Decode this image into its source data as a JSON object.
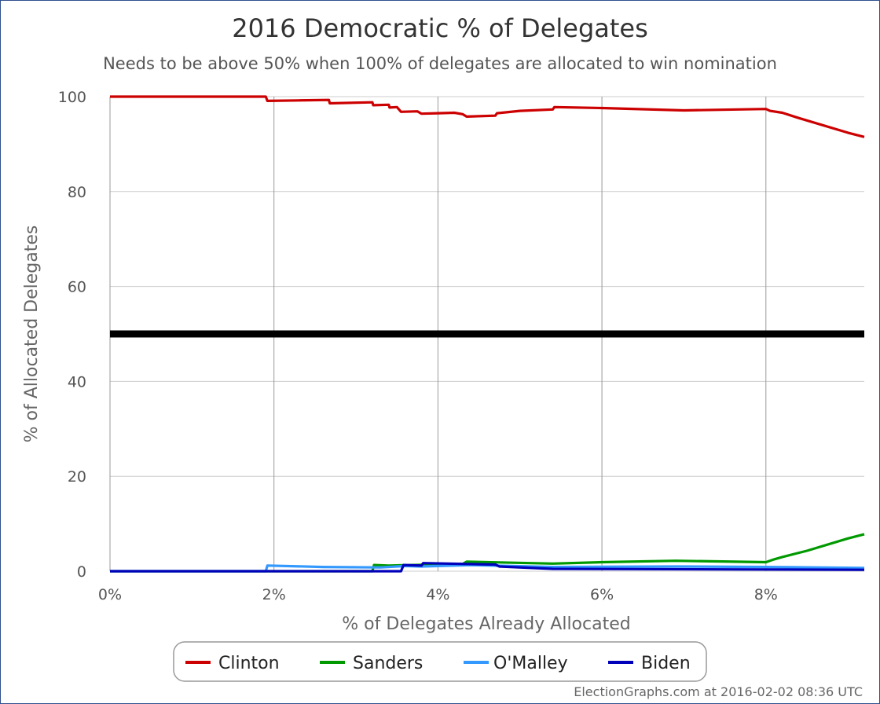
{
  "chart_data": {
    "type": "line",
    "title": "2016 Democratic % of Delegates",
    "subtitle": "Needs to be above 50% when 100% of delegates are allocated to win nomination",
    "xlabel": "% of Delegates Already Allocated",
    "ylabel": "% of Allocated Delegates",
    "xlim": [
      0,
      9.2
    ],
    "ylim": [
      0,
      100
    ],
    "x_ticks": [
      0,
      2,
      4,
      6,
      8
    ],
    "x_tick_labels": [
      "0%",
      "2%",
      "4%",
      "6%",
      "8%"
    ],
    "y_ticks": [
      0,
      20,
      40,
      60,
      80,
      100
    ],
    "y_tick_labels": [
      "0",
      "20",
      "40",
      "60",
      "80",
      "100"
    ],
    "grid": true,
    "threshold_line": {
      "y": 50,
      "color": "#000000"
    },
    "legend_position": "bottom-center",
    "series": [
      {
        "name": "Clinton",
        "color": "#cc0000",
        "points": [
          [
            0,
            100
          ],
          [
            1.9,
            100
          ],
          [
            1.92,
            99.1
          ],
          [
            2.3,
            99.2
          ],
          [
            2.67,
            99.3
          ],
          [
            2.68,
            98.6
          ],
          [
            3.2,
            98.8
          ],
          [
            3.21,
            98.2
          ],
          [
            3.4,
            98.3
          ],
          [
            3.41,
            97.7
          ],
          [
            3.5,
            97.8
          ],
          [
            3.55,
            96.8
          ],
          [
            3.75,
            96.9
          ],
          [
            3.8,
            96.4
          ],
          [
            4.0,
            96.5
          ],
          [
            4.2,
            96.6
          ],
          [
            4.3,
            96.3
          ],
          [
            4.35,
            95.8
          ],
          [
            4.7,
            96.0
          ],
          [
            4.72,
            96.5
          ],
          [
            5.0,
            97.0
          ],
          [
            5.4,
            97.3
          ],
          [
            5.42,
            97.8
          ],
          [
            6.0,
            97.6
          ],
          [
            7.0,
            97.1
          ],
          [
            8.0,
            97.4
          ],
          [
            8.05,
            97.0
          ],
          [
            8.2,
            96.6
          ],
          [
            8.4,
            95.5
          ],
          [
            9.0,
            92.4
          ],
          [
            9.2,
            91.5
          ]
        ]
      },
      {
        "name": "Sanders",
        "color": "#009900",
        "points": [
          [
            0,
            0
          ],
          [
            3.2,
            0
          ],
          [
            3.22,
            1.3
          ],
          [
            3.4,
            1.2
          ],
          [
            4.3,
            1.5
          ],
          [
            4.35,
            2.0
          ],
          [
            5.4,
            1.6
          ],
          [
            6.0,
            1.9
          ],
          [
            6.9,
            2.2
          ],
          [
            8.0,
            1.9
          ],
          [
            8.1,
            2.5
          ],
          [
            8.2,
            3.0
          ],
          [
            8.5,
            4.3
          ],
          [
            9.0,
            6.9
          ],
          [
            9.2,
            7.8
          ]
        ]
      },
      {
        "name": "O'Malley",
        "color": "#3399ff",
        "points": [
          [
            0,
            0
          ],
          [
            1.9,
            0
          ],
          [
            1.92,
            1.2
          ],
          [
            2.6,
            0.9
          ],
          [
            3.3,
            0.8
          ],
          [
            3.6,
            1.1
          ],
          [
            3.8,
            1.0
          ],
          [
            4.4,
            1.3
          ],
          [
            5.4,
            0.9
          ],
          [
            6.9,
            1.0
          ],
          [
            8.0,
            0.9
          ],
          [
            9.2,
            0.7
          ]
        ]
      },
      {
        "name": "Biden",
        "color": "#0000bb",
        "points": [
          [
            0,
            0
          ],
          [
            3.55,
            0
          ],
          [
            3.58,
            1.3
          ],
          [
            3.8,
            1.2
          ],
          [
            3.82,
            1.7
          ],
          [
            4.7,
            1.4
          ],
          [
            4.75,
            1.0
          ],
          [
            5.4,
            0.5
          ],
          [
            9.2,
            0.3
          ]
        ]
      }
    ]
  },
  "credit": "ElectionGraphs.com at 2016-02-02 08:36 UTC"
}
